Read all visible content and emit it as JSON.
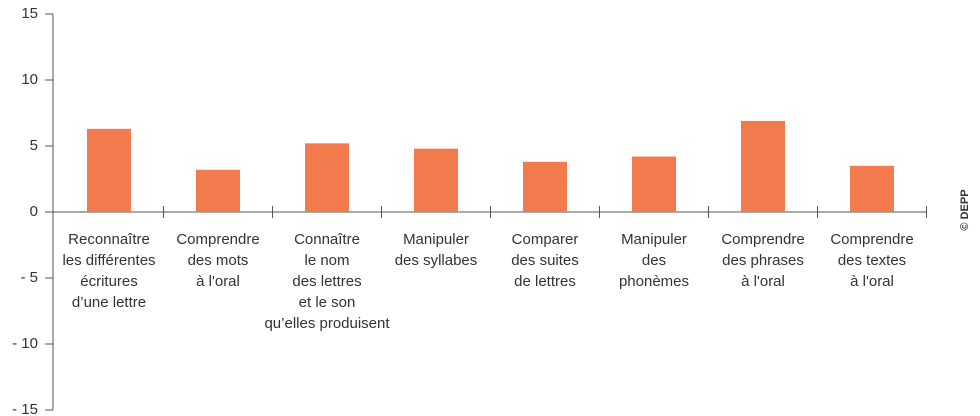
{
  "chart_data": {
    "type": "bar",
    "categories": [
      [
        "Reconnaître",
        "les différentes",
        "écritures",
        "d’une lettre"
      ],
      [
        "Comprendre",
        "des mots",
        "à l'oral"
      ],
      [
        "Connaître",
        "le nom",
        "des lettres",
        "et le son",
        "qu’elles produisent"
      ],
      [
        "Manipuler",
        "des syllabes"
      ],
      [
        "Comparer",
        "des suites",
        "de lettres"
      ],
      [
        "Manipuler",
        "des",
        "phonèmes"
      ],
      [
        "Comprendre",
        "des phrases",
        "à l'oral"
      ],
      [
        "Comprendre",
        "des textes",
        "à l'oral"
      ]
    ],
    "values": [
      6.3,
      3.2,
      5.2,
      4.8,
      3.8,
      4.2,
      6.9,
      3.5
    ],
    "color": "#f27b4e",
    "ylim": [
      -15,
      15
    ],
    "yticks": [
      15,
      10,
      5,
      0,
      {
        "value": -5,
        "label": "- 5"
      },
      {
        "value": -10,
        "label": "- 10"
      },
      {
        "value": -15,
        "label": "- 15"
      }
    ],
    "grid": false,
    "source": "© DEPP"
  }
}
